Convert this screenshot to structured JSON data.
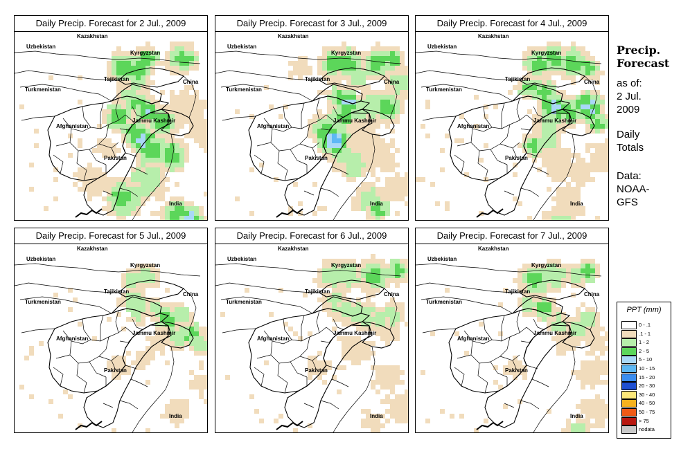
{
  "panels": [
    {
      "title": "Daily Precip. Forecast for  2 Jul., 2009"
    },
    {
      "title": "Daily Precip. Forecast for  3 Jul., 2009"
    },
    {
      "title": "Daily Precip. Forecast for  4 Jul., 2009"
    },
    {
      "title": "Daily Precip. Forecast for  5 Jul., 2009"
    },
    {
      "title": "Daily Precip. Forecast for  6 Jul., 2009"
    },
    {
      "title": "Daily Precip. Forecast for  7 Jul., 2009"
    }
  ],
  "map_labels": {
    "kazakhstan": "Kazakhstan",
    "uzbekistan": "Uzbekistan",
    "kyrgyzstan": "Kyrgyzstan",
    "tajikistan": "Tajikistan",
    "china": "China",
    "turkmenistan": "Turkmenistan",
    "afghanistan": "Afghanistan",
    "jammu_kashmir": "Jammu Kashmir",
    "pakistan": "Pakistan",
    "india": "India"
  },
  "sidebar": {
    "title_line1": "Precip.",
    "title_line2": "Forecast",
    "asof_line1": "as of:",
    "asof_line2": "2 Jul.",
    "asof_line3": "2009",
    "totals_line1": "Daily",
    "totals_line2": "Totals",
    "data_line1": "Data:",
    "data_line2": "NOAA-",
    "data_line3": "GFS"
  },
  "legend": {
    "title": "PPT (mm)",
    "items": [
      {
        "label": "0 - .1",
        "color": "#ffffff"
      },
      {
        "label": ".1 - 1",
        "color": "#f1dcbc"
      },
      {
        "label": "1 - 2",
        "color": "#b7eeab"
      },
      {
        "label": "2 - 5",
        "color": "#5cd65a"
      },
      {
        "label": "5 - 10",
        "color": "#a9d8f7"
      },
      {
        "label": "10 - 15",
        "color": "#5db8f5"
      },
      {
        "label": "15 - 20",
        "color": "#3a8df0"
      },
      {
        "label": "20 - 30",
        "color": "#1e4fd2"
      },
      {
        "label": "30 - 40",
        "color": "#fce87a"
      },
      {
        "label": "40 - 50",
        "color": "#f7b21f"
      },
      {
        "label": "50 - 75",
        "color": "#f05a16"
      },
      {
        "label": "> 75",
        "color": "#b8170f"
      },
      {
        "label": "nodata",
        "color": "#c8c8c8"
      }
    ]
  }
}
